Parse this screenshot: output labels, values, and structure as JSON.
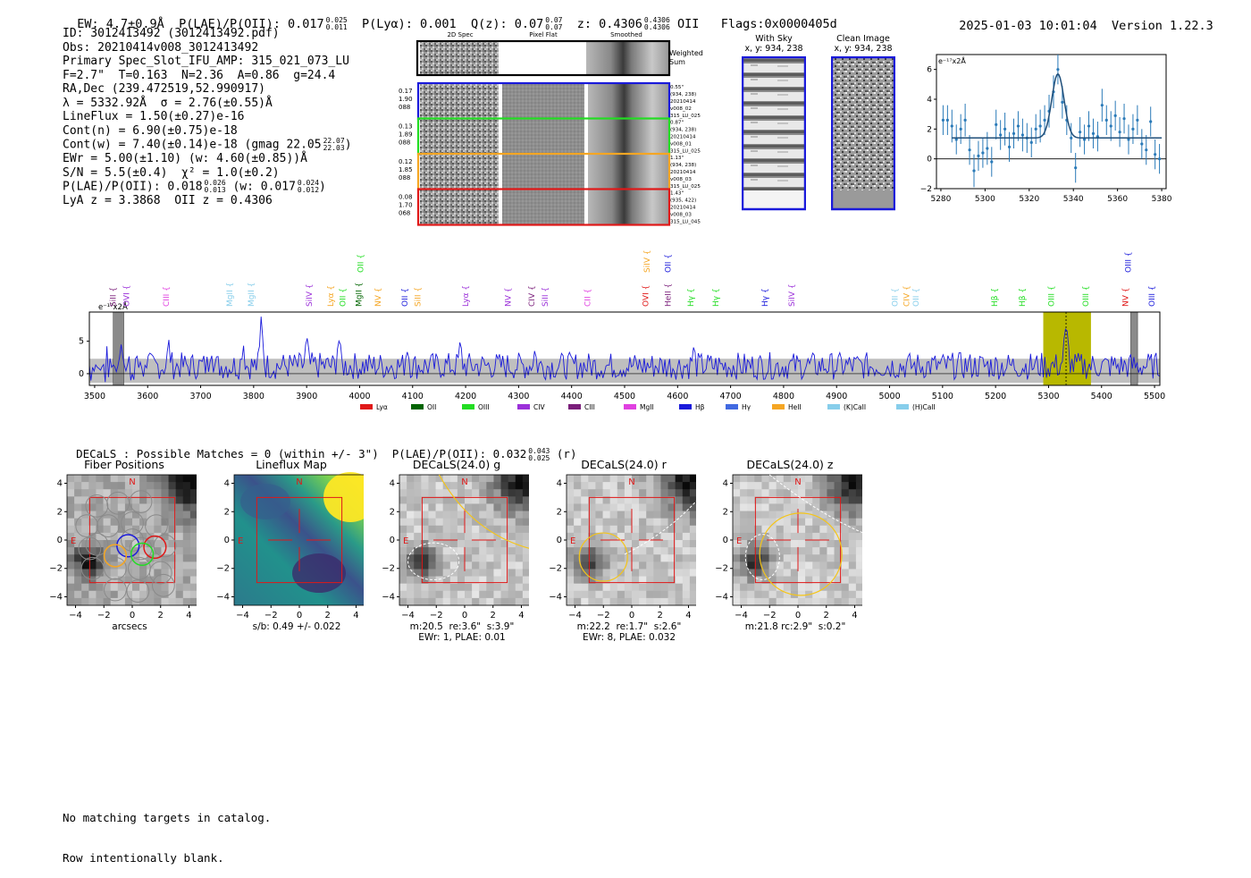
{
  "header": {
    "ew": "EW: 4.7±0.9Å",
    "plae_label": "P(LAE)/P(OII): 0.017",
    "plae_sup": "0.025",
    "plae_sub": "0.011",
    "plya": "P(Lyα): 0.001",
    "q_label": "Q(z): 0.07",
    "q_sup": "0.07",
    "q_sub": "0.07",
    "z_label": "z: 0.4306",
    "z_sup": "0.4306",
    "z_sub": "0.4306",
    "z_line": "OII",
    "flags": "Flags:0x0000405d",
    "timestamp": "2025-01-03 10:01:04",
    "version": "Version 1.22.3"
  },
  "info": {
    "id": "ID: 3012413492 (3012413492.pdf)",
    "obs": "Obs: 20210414v008_3012413492",
    "primary": "Primary Spec_Slot_IFU_AMP: 315_021_073_LU",
    "params": "F=2.7\"  T=0.163  N=2.36  A=0.86  g=24.4",
    "radec": "RA,Dec (239.472519,52.990917)",
    "lambda": "λ = 5332.92Å  σ = 2.76(±0.55)Å",
    "lineflux": "LineFlux = 1.50(±0.27)e-16",
    "contn": "Cont(n) = 6.90(±0.75)e-18",
    "contw": "Cont(w) = 7.40(±0.14)e-18 (gmag 22.05",
    "contw_sup": "22.07",
    "contw_sub": "22.03",
    "ewr": "EWr = 5.00(±1.10) (w: 4.60(±0.85))Å",
    "sn": "S/N = 5.5(±0.4)  χ² = 1.0(±0.2)",
    "plae2": "P(LAE)/P(OII): 0.018",
    "plae2_sup": "0.026",
    "plae2_sub": "0.013",
    "plae2_w": "(w: 0.017",
    "plae2_w_sup": "0.024",
    "plae2_w_sub": "0.012",
    "lya_oii": "LyA z = 3.3868  OII z = 0.4306"
  },
  "cutouts": {
    "col_titles": [
      "2D Spec",
      "Pixel Flat",
      "Smoothed"
    ],
    "weighted_label": "Weighted\nSum",
    "rows": [
      {
        "left": [
          "0.17",
          "1.90",
          "088"
        ],
        "right": [
          "0.55\"",
          "(934, 238)",
          "20210414",
          "v008_02",
          "315_LU_025"
        ],
        "color": "#1a1adb"
      },
      {
        "left": [
          "0.13",
          "1.89",
          "088"
        ],
        "right": [
          "0.87\"",
          "(934, 238)",
          "20210414",
          "v008_01",
          "315_LU_025"
        ],
        "color": "#22dd22"
      },
      {
        "left": [
          "0.12",
          "1.85",
          "088"
        ],
        "right": [
          "1.13\"",
          "(934, 238)",
          "20210414",
          "v008_03",
          "315_LU_025"
        ],
        "color": "#f5a623"
      },
      {
        "left": [
          "0.08",
          "1.70",
          "068"
        ],
        "right": [
          "1.43\"",
          "(935, 422)",
          "20210414",
          "v008_03",
          "315_LU_045"
        ],
        "color": "#e01818"
      }
    ]
  },
  "sky": {
    "with_sky_title": "With Sky",
    "with_sky_xy": "x, y: 934, 238",
    "clean_title": "Clean Image",
    "clean_xy": "x, y: 934, 238"
  },
  "chart_data": [
    {
      "type": "line",
      "id": "zoom-spectrum",
      "ylabel": "e⁻¹⁷x2Å",
      "xlim": [
        5278,
        5382
      ],
      "ylim": [
        -2,
        7
      ],
      "xticks": [
        5280,
        5300,
        5320,
        5340,
        5360,
        5380
      ],
      "yticks": [
        -2,
        0,
        2,
        4,
        6
      ],
      "fit": {
        "continuum": 1.4,
        "center": 5333,
        "sigma": 2.76,
        "amplitude": 4.3
      },
      "points": [
        {
          "x": 5281,
          "y": 2.6,
          "err": 1.0
        },
        {
          "x": 5283,
          "y": 2.6,
          "err": 1.0
        },
        {
          "x": 5285,
          "y": 2.2,
          "err": 1.1
        },
        {
          "x": 5287,
          "y": 1.3,
          "err": 1.0
        },
        {
          "x": 5289,
          "y": 2.0,
          "err": 1.0
        },
        {
          "x": 5291,
          "y": 2.6,
          "err": 1.1
        },
        {
          "x": 5293,
          "y": 0.6,
          "err": 1.0
        },
        {
          "x": 5295,
          "y": -0.8,
          "err": 1.1
        },
        {
          "x": 5297,
          "y": 0.2,
          "err": 1.0
        },
        {
          "x": 5299,
          "y": 0.4,
          "err": 1.0
        },
        {
          "x": 5301,
          "y": 0.7,
          "err": 1.1
        },
        {
          "x": 5303,
          "y": -0.2,
          "err": 1.0
        },
        {
          "x": 5305,
          "y": 2.3,
          "err": 1.0
        },
        {
          "x": 5307,
          "y": 1.6,
          "err": 1.0
        },
        {
          "x": 5309,
          "y": 2.0,
          "err": 1.1
        },
        {
          "x": 5311,
          "y": 0.8,
          "err": 1.0
        },
        {
          "x": 5313,
          "y": 1.7,
          "err": 1.0
        },
        {
          "x": 5315,
          "y": 2.2,
          "err": 1.0
        },
        {
          "x": 5317,
          "y": 1.6,
          "err": 1.1
        },
        {
          "x": 5319,
          "y": 1.4,
          "err": 1.0
        },
        {
          "x": 5321,
          "y": 1.1,
          "err": 1.0
        },
        {
          "x": 5323,
          "y": 2.0,
          "err": 1.0
        },
        {
          "x": 5325,
          "y": 2.2,
          "err": 1.1
        },
        {
          "x": 5327,
          "y": 2.6,
          "err": 1.0
        },
        {
          "x": 5329,
          "y": 3.2,
          "err": 1.1
        },
        {
          "x": 5331,
          "y": 4.5,
          "err": 1.1
        },
        {
          "x": 5333,
          "y": 6.0,
          "err": 1.0
        },
        {
          "x": 5335,
          "y": 3.8,
          "err": 1.1
        },
        {
          "x": 5337,
          "y": 2.6,
          "err": 1.0
        },
        {
          "x": 5339,
          "y": 1.4,
          "err": 1.0
        },
        {
          "x": 5341,
          "y": -0.6,
          "err": 1.0
        },
        {
          "x": 5343,
          "y": 1.8,
          "err": 1.0
        },
        {
          "x": 5345,
          "y": 1.3,
          "err": 1.0
        },
        {
          "x": 5347,
          "y": 2.2,
          "err": 1.0
        },
        {
          "x": 5349,
          "y": 1.7,
          "err": 1.0
        },
        {
          "x": 5351,
          "y": 1.5,
          "err": 1.0
        },
        {
          "x": 5353,
          "y": 3.6,
          "err": 1.1
        },
        {
          "x": 5355,
          "y": 2.6,
          "err": 1.0
        },
        {
          "x": 5357,
          "y": 2.2,
          "err": 1.0
        },
        {
          "x": 5359,
          "y": 2.9,
          "err": 1.0
        },
        {
          "x": 5361,
          "y": 1.8,
          "err": 1.0
        },
        {
          "x": 5363,
          "y": 2.7,
          "err": 1.0
        },
        {
          "x": 5365,
          "y": 1.3,
          "err": 1.0
        },
        {
          "x": 5367,
          "y": 2.0,
          "err": 1.0
        },
        {
          "x": 5369,
          "y": 2.6,
          "err": 1.0
        },
        {
          "x": 5371,
          "y": 1.0,
          "err": 1.0
        },
        {
          "x": 5373,
          "y": 0.6,
          "err": 1.0
        },
        {
          "x": 5375,
          "y": 2.5,
          "err": 1.0
        },
        {
          "x": 5377,
          "y": 0.3,
          "err": 1.0
        },
        {
          "x": 5379,
          "y": 0.0,
          "err": 1.0
        }
      ]
    },
    {
      "type": "line",
      "id": "full-spectrum",
      "ylabel": "e⁻¹⁷x2Å",
      "xlim": [
        3490,
        5510
      ],
      "ylim": [
        -1.8,
        9.5
      ],
      "xticks": [
        3500,
        3600,
        3700,
        3800,
        3900,
        4000,
        4100,
        4200,
        4300,
        4400,
        4500,
        4600,
        4700,
        4800,
        4900,
        5000,
        5100,
        5200,
        5300,
        5400,
        5500
      ],
      "yticks": [
        0,
        5
      ],
      "highlight": {
        "from": 5290,
        "to": 5380,
        "line": 5333
      },
      "masks": [
        {
          "from": 3535,
          "to": 3555
        },
        {
          "from": 5455,
          "to": 5468
        }
      ],
      "peaks": [
        {
          "x": 3550,
          "y": 5.5
        },
        {
          "x": 3640,
          "y": 4.2
        },
        {
          "x": 3720,
          "y": 4.8
        },
        {
          "x": 3780,
          "y": 5.0
        },
        {
          "x": 3815,
          "y": 8.8
        },
        {
          "x": 3900,
          "y": 4.5
        },
        {
          "x": 3960,
          "y": 5.5
        },
        {
          "x": 4090,
          "y": 4.5
        },
        {
          "x": 4190,
          "y": 3.8
        },
        {
          "x": 4330,
          "y": 3.4
        },
        {
          "x": 4630,
          "y": 3.2
        },
        {
          "x": 5333,
          "y": 5.9
        }
      ],
      "lines": [
        {
          "label": "SiII",
          "x": 3535,
          "color": "#7a1e7a",
          "row": 0
        },
        {
          "label": "OVI",
          "x": 3560,
          "color": "#9b30d9",
          "row": 0
        },
        {
          "label": "CIII",
          "x": 3635,
          "color": "#e040e0",
          "row": 0
        },
        {
          "label": "MgII",
          "x": 3755,
          "color": "#87ceeb",
          "row": 0
        },
        {
          "label": "MgII",
          "x": 3795,
          "color": "#87ceeb",
          "row": 0
        },
        {
          "label": "SiIV",
          "x": 3905,
          "color": "#9b30d9",
          "row": 0
        },
        {
          "label": "Lyα",
          "x": 3945,
          "color": "#f5a623",
          "row": 0
        },
        {
          "label": "OII",
          "x": 3968,
          "color": "#22dd22",
          "row": 0
        },
        {
          "label": "MgII",
          "x": 3998,
          "color": "#006400",
          "row": 0
        },
        {
          "label": "OII",
          "x": 4002,
          "color": "#22dd22",
          "row": 1
        },
        {
          "label": "NV",
          "x": 4035,
          "color": "#f5a623",
          "row": 0
        },
        {
          "label": "OII",
          "x": 4085,
          "color": "#1a1adb",
          "row": 0
        },
        {
          "label": "SiII",
          "x": 4110,
          "color": "#f5a623",
          "row": 0
        },
        {
          "label": "Lyα",
          "x": 4200,
          "color": "#9b30d9",
          "row": 0
        },
        {
          "label": "NV",
          "x": 4280,
          "color": "#9b30d9",
          "row": 0
        },
        {
          "label": "CIV",
          "x": 4325,
          "color": "#7a1e7a",
          "row": 0
        },
        {
          "label": "SiII",
          "x": 4350,
          "color": "#9b30d9",
          "row": 0
        },
        {
          "label": "CII",
          "x": 4430,
          "color": "#e040e0",
          "row": 0
        },
        {
          "label": "OVI",
          "x": 4540,
          "color": "#e01818",
          "row": 0
        },
        {
          "label": "SiIV",
          "x": 4542,
          "color": "#f5a623",
          "row": 1
        },
        {
          "label": "HeII",
          "x": 4582,
          "color": "#7a1e7a",
          "row": 0
        },
        {
          "label": "OII",
          "x": 4582,
          "color": "#1a1adb",
          "row": 1
        },
        {
          "label": "Hγ",
          "x": 4625,
          "color": "#22dd22",
          "row": 0
        },
        {
          "label": "Hγ",
          "x": 4672,
          "color": "#22dd22",
          "row": 0
        },
        {
          "label": "Hγ",
          "x": 4765,
          "color": "#1a1adb",
          "row": 0
        },
        {
          "label": "SiIV",
          "x": 4815,
          "color": "#9b30d9",
          "row": 0
        },
        {
          "label": "OII",
          "x": 5010,
          "color": "#87ceeb",
          "row": 0
        },
        {
          "label": "CIV",
          "x": 5032,
          "color": "#f5a623",
          "row": 0
        },
        {
          "label": "OII",
          "x": 5050,
          "color": "#87ceeb",
          "row": 0
        },
        {
          "label": "Hβ",
          "x": 5198,
          "color": "#22dd22",
          "row": 0
        },
        {
          "label": "Hβ",
          "x": 5250,
          "color": "#22dd22",
          "row": 0
        },
        {
          "label": "OIII",
          "x": 5305,
          "color": "#22dd22",
          "row": 0
        },
        {
          "label": "OIII",
          "x": 5370,
          "color": "#22dd22",
          "row": 0
        },
        {
          "label": "NV",
          "x": 5445,
          "color": "#e01818",
          "row": 0
        },
        {
          "label": "OIII",
          "x": 5450,
          "color": "#1a1adb",
          "row": 1
        },
        {
          "label": "OIII",
          "x": 5495,
          "color": "#1a1adb",
          "row": 0
        }
      ],
      "legend": [
        {
          "label": "Lyα",
          "color": "#e01818"
        },
        {
          "label": "OII",
          "color": "#006400"
        },
        {
          "label": "OIII",
          "color": "#22dd22"
        },
        {
          "label": "CIV",
          "color": "#9b30d9"
        },
        {
          "label": "CIII",
          "color": "#7a1e7a"
        },
        {
          "label": "MgII",
          "color": "#e040e0"
        },
        {
          "label": "Hβ",
          "color": "#1a1adb"
        },
        {
          "label": "Hγ",
          "color": "#4169e1"
        },
        {
          "label": "HeII",
          "color": "#f5a623"
        },
        {
          "label": "(K)CaII",
          "color": "#87ceeb"
        },
        {
          "label": "(H)CaII",
          "color": "#87ceeb"
        }
      ]
    }
  ],
  "decals": {
    "summary": "DECaLS : Possible Matches = 0 (within +/- 3\")  P(LAE)/P(OII): 0.032",
    "summary_sup": "0.043",
    "summary_sub": "0.025",
    "summary_band": "(r)",
    "axis_ticks": [
      "−4",
      "−2",
      "0",
      "2",
      "4"
    ],
    "north": "N",
    "east": "E",
    "panels": [
      {
        "title": "Fiber Positions",
        "caption1": "arcsecs",
        "caption2": ""
      },
      {
        "title": "Lineflux Map",
        "caption1": "s/b: 0.49 +/- 0.022",
        "caption2": ""
      },
      {
        "title": "DECaLS(24.0) g",
        "caption1": "m:20.5  re:3.6\"  s:3.9\"",
        "caption2": "EWr: 1, PLAE: 0.01"
      },
      {
        "title": "DECaLS(24.0) r",
        "caption1": "m:22.2  re:1.7\"  s:2.6\"",
        "caption2": "EWr: 8, PLAE: 0.032"
      },
      {
        "title": "DECaLS(24.0) z",
        "caption1": "m:21.8 rc:2.9\"  s:0.2\"",
        "caption2": ""
      }
    ]
  },
  "footer": {
    "line1": "No matching targets in catalog.",
    "line2": "Row intentionally blank."
  }
}
